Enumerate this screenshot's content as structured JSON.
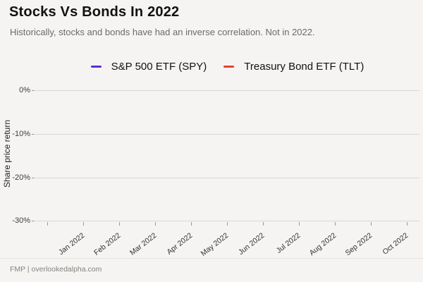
{
  "page": {
    "background_color": "#f5f4f2"
  },
  "header": {
    "title": "Stocks Vs Bonds In 2022",
    "subtitle": "Historically, stocks and bonds have had an inverse correlation. Not in 2022."
  },
  "footer": {
    "text": "FMP | overlookedalpha.com"
  },
  "chart_data": {
    "type": "line",
    "title": "Stocks Vs Bonds In 2022",
    "subtitle": "Historically, stocks and bonds have had an inverse correlation. Not in 2022.",
    "xlabel": "",
    "ylabel": "Share price return",
    "x_tick_labels": [
      "Jan 2022",
      "Feb 2022",
      "Mar 2022",
      "Apr 2022",
      "May 2022",
      "Jun 2022",
      "Jul 2022",
      "Aug 2022",
      "Sep 2022",
      "Oct 2022"
    ],
    "y_tick_labels": [
      "0%",
      "-10%",
      "-20%",
      "-30%"
    ],
    "y_tick_values": [
      0,
      -10,
      -20,
      -30
    ],
    "ylim": [
      -32,
      2
    ],
    "grid": true,
    "legend_position": "top-center",
    "series": [
      {
        "name": "S&P 500 ETF (SPY)",
        "color": "#5c2dd5",
        "values": []
      },
      {
        "name": "Treasury Bond ETF (TLT)",
        "color": "#e8402e",
        "values": []
      }
    ],
    "note": "No series lines are visible in the plot area of the screenshot; only gridlines are rendered."
  }
}
